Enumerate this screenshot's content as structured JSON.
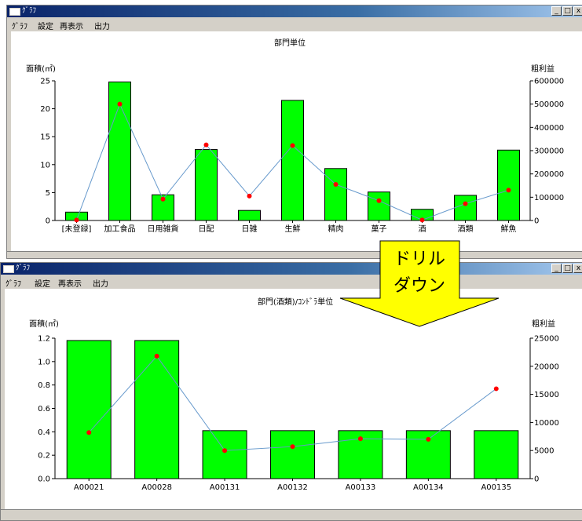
{
  "top_window": {
    "title": "ｸﾞﾗﾌ",
    "menu": [
      "ｸﾞﾗﾌ",
      "設定",
      "再表示",
      "出力"
    ]
  },
  "bottom_window": {
    "title": "ｸﾞﾗﾌ",
    "menu": [
      "ｸﾞﾗﾌ",
      "設定",
      "再表示",
      "出力"
    ]
  },
  "callout": {
    "line1": "ドリル",
    "line2": "ダウン",
    "color": "#ffff00"
  },
  "colors": {
    "bar": "#00ff00",
    "line": "#6699cc",
    "point": "#ff0000"
  },
  "chart_data": [
    {
      "type": "bar",
      "title": "部門単位",
      "ylabel": "面積(㎡)",
      "y2label": "粗利益",
      "categories": [
        "[未登録]",
        "加工食品",
        "日用雑貨",
        "日配",
        "日雑",
        "生鮮",
        "精肉",
        "菓子",
        "酒",
        "酒類",
        "鮮魚"
      ],
      "ylim": [
        0,
        25
      ],
      "yticks": [
        "0",
        "5",
        "10",
        "15",
        "20",
        "25"
      ],
      "y2lim": [
        0,
        600000
      ],
      "y2ticks": [
        "0",
        "100000",
        "200000",
        "300000",
        "400000",
        "500000",
        "600000"
      ],
      "series": [
        {
          "name": "面積(㎡)",
          "type": "bar",
          "values": [
            1.5,
            24.8,
            4.6,
            12.7,
            1.8,
            21.5,
            9.3,
            5.1,
            2.0,
            4.5,
            12.6
          ]
        },
        {
          "name": "粗利益",
          "type": "line",
          "axis": "right",
          "values": [
            2000,
            500000,
            92000,
            325000,
            105000,
            322000,
            155000,
            85000,
            2000,
            72000,
            130000
          ]
        }
      ]
    },
    {
      "type": "bar",
      "title": "部門(酒類)/ｺﾝﾄﾞﾗ単位",
      "ylabel": "面積(㎡)",
      "y2label": "粗利益",
      "categories": [
        "A00021",
        "A00028",
        "A00131",
        "A00132",
        "A00133",
        "A00134",
        "A00135"
      ],
      "ylim": [
        0,
        1.2
      ],
      "yticks": [
        "0.0",
        "0.2",
        "0.4",
        "0.6",
        "0.8",
        "1.0",
        "1.2"
      ],
      "y2lim": [
        0,
        25000
      ],
      "y2ticks": [
        "0",
        "5000",
        "10000",
        "15000",
        "20000",
        "25000"
      ],
      "series": [
        {
          "name": "面積(㎡)",
          "type": "bar",
          "values": [
            1.18,
            1.18,
            0.41,
            0.41,
            0.41,
            0.41,
            0.41
          ]
        },
        {
          "name": "粗利益",
          "type": "line",
          "axis": "right",
          "values": [
            8200,
            21800,
            5000,
            5700,
            7100,
            7000,
            16000
          ]
        }
      ]
    }
  ]
}
